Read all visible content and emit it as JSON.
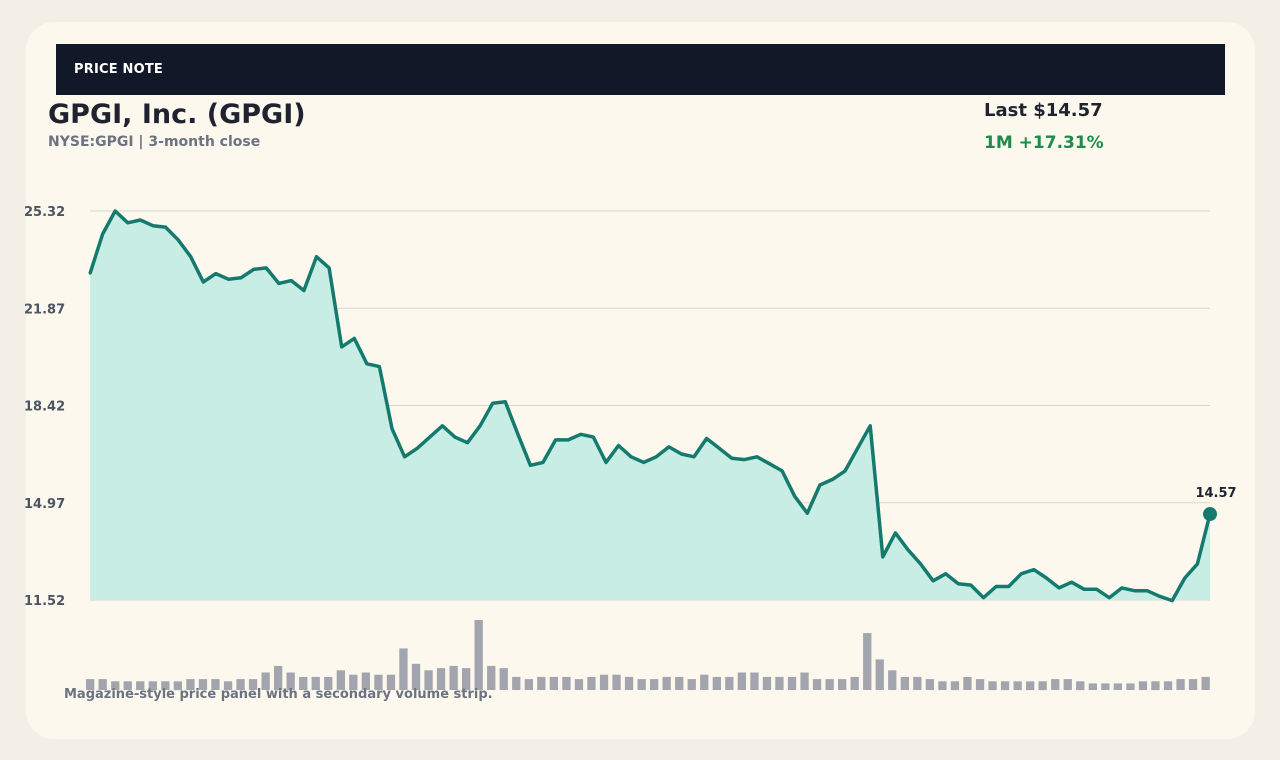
{
  "header": {
    "label": "PRICE NOTE"
  },
  "company": {
    "title": "GPGI, Inc. (GPGI)",
    "subtitle": "NYSE:GPGI | 3-month close"
  },
  "quote": {
    "last": "Last $14.57",
    "change": "1M +17.31%",
    "change_color": "#1f8a4c"
  },
  "footnote": "Magazine-style price panel with a secondary volume strip.",
  "colors": {
    "line": "#147a6e",
    "area": "#c8ede5",
    "grid": "#d9d6cf",
    "volume": "#a3a5ae"
  },
  "chart_data": {
    "type": "area",
    "title": "",
    "xlabel": "",
    "ylabel": "",
    "ylim": [
      11.52,
      25.32
    ],
    "yticks": [
      "25.32",
      "21.87",
      "18.42",
      "14.97",
      "11.52"
    ],
    "grid": true,
    "end_label": "14.57",
    "series": [
      {
        "values": [
          23.1,
          24.5,
          25.32,
          24.9,
          25.0,
          24.8,
          24.75,
          24.3,
          23.7,
          22.8,
          23.1,
          22.9,
          22.95,
          23.25,
          23.3,
          22.75,
          22.85,
          22.5,
          23.7,
          23.3,
          20.5,
          20.8,
          19.9,
          19.8,
          17.6,
          16.6,
          16.9,
          17.3,
          17.7,
          17.3,
          17.1,
          17.7,
          18.5,
          18.55,
          17.4,
          16.3,
          16.4,
          17.2,
          17.2,
          17.4,
          17.3,
          16.4,
          17.0,
          16.6,
          16.4,
          16.6,
          16.95,
          16.7,
          16.6,
          17.25,
          16.9,
          16.55,
          16.5,
          16.6,
          16.35,
          16.1,
          15.2,
          14.6,
          15.6,
          15.8,
          16.1,
          16.9,
          17.7,
          13.05,
          13.9,
          13.3,
          12.8,
          12.2,
          12.45,
          12.1,
          12.05,
          11.6,
          12.0,
          12.0,
          12.45,
          12.6,
          12.3,
          11.95,
          12.15,
          11.9,
          11.9,
          11.6,
          11.95,
          11.85,
          11.85,
          11.65,
          11.5,
          12.3,
          12.8,
          14.57
        ]
      }
    ],
    "volume": [
      5,
      5,
      4,
      4,
      4,
      4,
      4,
      4,
      5,
      5,
      5,
      4,
      5,
      5,
      8,
      11,
      8,
      6,
      6,
      6,
      9,
      7,
      8,
      7,
      7,
      19,
      12,
      9,
      10,
      11,
      10,
      32,
      11,
      10,
      6,
      5,
      6,
      6,
      6,
      5,
      6,
      7,
      7,
      6,
      5,
      5,
      6,
      6,
      5,
      7,
      6,
      6,
      8,
      8,
      6,
      6,
      6,
      8,
      5,
      5,
      5,
      6,
      26,
      14,
      9,
      6,
      6,
      5,
      4,
      4,
      6,
      5,
      4,
      4,
      4,
      4,
      4,
      5,
      5,
      4,
      3,
      3,
      3,
      3,
      4,
      4,
      4,
      5,
      5,
      6
    ]
  }
}
